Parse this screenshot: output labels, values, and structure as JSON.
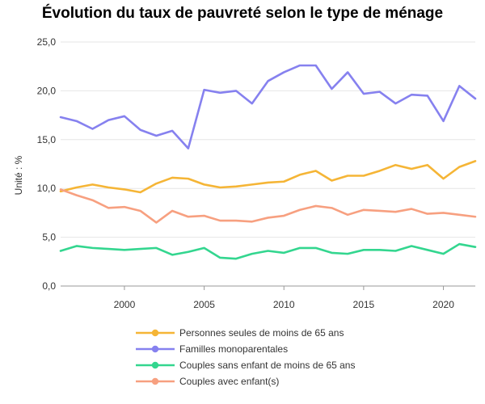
{
  "chart_data": {
    "type": "line",
    "title": "Évolution du taux de pauvreté selon le type de ménage",
    "ylabel": "Unité : %",
    "xlabel": "",
    "xlim": [
      1996,
      2022
    ],
    "ylim": [
      0,
      25
    ],
    "x_ticks": [
      2000,
      2005,
      2010,
      2015,
      2020
    ],
    "y_ticks": [
      0,
      5,
      10,
      15,
      20,
      25
    ],
    "y_tick_labels": [
      "0,0",
      "5,0",
      "10,0",
      "15,0",
      "20,0",
      "25,0"
    ],
    "grid": "horizontal",
    "legend_position": "bottom",
    "x": [
      1996,
      1997,
      1998,
      1999,
      2000,
      2001,
      2002,
      2003,
      2004,
      2005,
      2006,
      2007,
      2008,
      2009,
      2010,
      2011,
      2012,
      2013,
      2014,
      2015,
      2016,
      2017,
      2018,
      2019,
      2020,
      2021,
      2022
    ],
    "series": [
      {
        "name": "Personnes seules de moins de 65 ans",
        "color": "#f5b536",
        "values": [
          9.7,
          10.1,
          10.4,
          10.1,
          9.9,
          9.6,
          10.5,
          11.1,
          11.0,
          10.4,
          10.1,
          10.2,
          10.4,
          10.6,
          10.7,
          11.4,
          11.8,
          10.8,
          11.3,
          11.3,
          11.8,
          12.4,
          12.0,
          12.4,
          11.0,
          12.2,
          12.8
        ]
      },
      {
        "name": "Familles monoparentales",
        "color": "#8681ef",
        "values": [
          17.3,
          16.9,
          16.1,
          17.0,
          17.4,
          16.0,
          15.4,
          15.9,
          14.1,
          20.1,
          19.8,
          20.0,
          18.7,
          21.0,
          21.9,
          22.6,
          22.6,
          20.2,
          21.9,
          19.7,
          19.9,
          18.7,
          19.6,
          19.5,
          16.9,
          20.5,
          19.2
        ]
      },
      {
        "name": "Couples sans enfant de moins de 65 ans",
        "color": "#33d68f",
        "values": [
          3.6,
          4.1,
          3.9,
          3.8,
          3.7,
          3.8,
          3.9,
          3.2,
          3.5,
          3.9,
          2.9,
          2.8,
          3.3,
          3.6,
          3.4,
          3.9,
          3.9,
          3.4,
          3.3,
          3.7,
          3.7,
          3.6,
          4.1,
          3.7,
          3.3,
          4.3,
          4.0
        ]
      },
      {
        "name": "Couples avec enfant(s)",
        "color": "#f7a080",
        "values": [
          9.9,
          9.3,
          8.8,
          8.0,
          8.1,
          7.7,
          6.5,
          7.7,
          7.1,
          7.2,
          6.7,
          6.7,
          6.6,
          7.0,
          7.2,
          7.8,
          8.2,
          8.0,
          7.3,
          7.8,
          7.7,
          7.6,
          7.9,
          7.4,
          7.5,
          7.3,
          7.1
        ]
      }
    ]
  }
}
